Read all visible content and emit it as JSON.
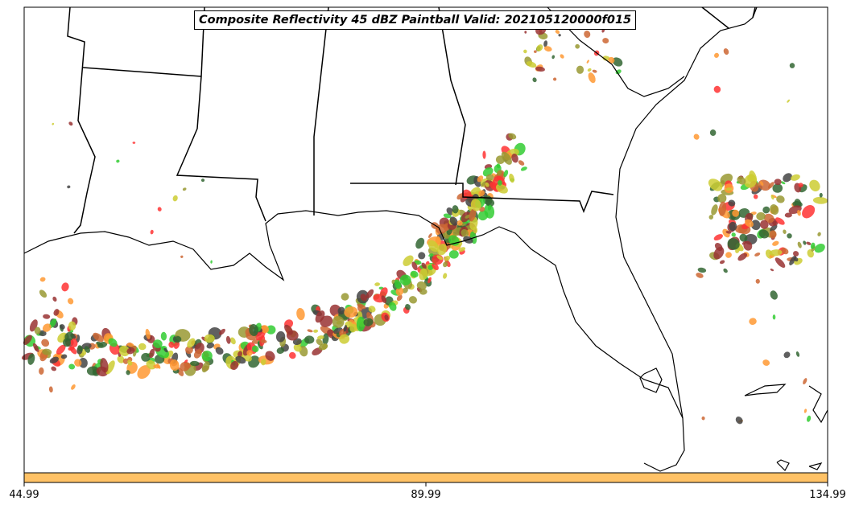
{
  "title": "Composite Reflectivity 45 dBZ Paintball Valid: 202105120000f015",
  "colorbar": {
    "color": "#ffc266",
    "ticks": [
      "44.99",
      "89.99",
      "134.99"
    ]
  },
  "palette": [
    "#ff3333",
    "#ff9933",
    "#33cc33",
    "#336633",
    "#993333",
    "#999933",
    "#444444",
    "#cccc33",
    "#cc6633"
  ]
}
